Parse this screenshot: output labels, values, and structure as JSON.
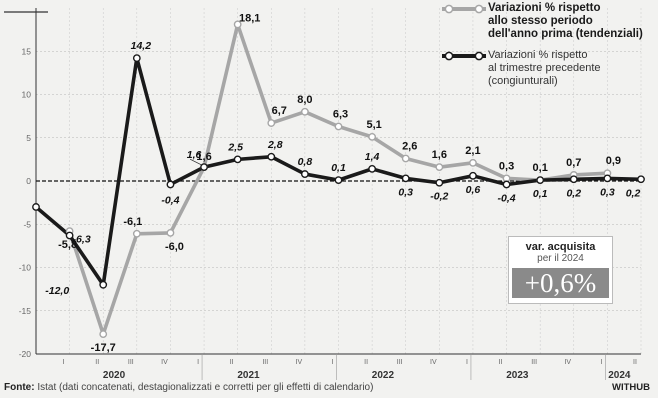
{
  "chart_data": {
    "type": "line",
    "x": [
      "2019-IV",
      "2020-I",
      "2020-II",
      "2020-III",
      "2020-IV",
      "2021-I",
      "2021-II",
      "2021-III",
      "2021-IV",
      "2022-I",
      "2022-II",
      "2022-III",
      "2022-IV",
      "2023-I",
      "2023-II",
      "2023-III",
      "2023-IV",
      "2024-I",
      "2024-II"
    ],
    "quarter_ticks": [
      "I",
      "II",
      "III",
      "IV",
      "I",
      "II",
      "III",
      "IV",
      "I",
      "II",
      "III",
      "IV",
      "I",
      "II",
      "III",
      "IV",
      "I",
      "II"
    ],
    "year_labels": [
      "2020",
      "2021",
      "2022",
      "2023",
      "2024"
    ],
    "ylim": [
      -20,
      20
    ],
    "yticks": [
      -20,
      -15,
      -10,
      -5,
      0,
      5,
      10,
      15
    ],
    "grid": true,
    "series": [
      {
        "name": "Variazioni % rispetto allo stesso periodo dell'anno prima (tendenziali)",
        "color": "#a6a6a6",
        "values": [
          null,
          -5.8,
          -17.7,
          -6.1,
          -6.0,
          1.6,
          18.1,
          6.7,
          8.0,
          6.3,
          5.1,
          2.6,
          1.6,
          2.1,
          0.3,
          0.1,
          0.7,
          0.9,
          null
        ],
        "labels": [
          "",
          "-5,8",
          "-17,7",
          "-6,1",
          "-6,0",
          "1,6",
          "18,1",
          "6,7",
          "8,0",
          "6,3",
          "5,1",
          "2,6",
          "1,6",
          "2,1",
          "0,3",
          "0,1",
          "0,7",
          "0,9",
          ""
        ]
      },
      {
        "name": "Variazioni % rispetto al trimestre precedente (congiunturali)",
        "color": "#1a1a1a",
        "values": [
          -3.0,
          -6.3,
          -12.0,
          14.2,
          -0.4,
          1.6,
          2.5,
          2.8,
          0.8,
          0.1,
          1.4,
          0.3,
          -0.2,
          0.6,
          -0.4,
          0.1,
          0.2,
          0.3,
          0.2
        ],
        "labels": [
          "",
          "-6,3",
          "-12,0",
          "14,2",
          "-0,4",
          "1,6",
          "2,5",
          "2,8",
          "0,8",
          "0,1",
          "1,4",
          "0,3",
          "-0,2",
          "0,6",
          "-0,4",
          "0,1",
          "0,2",
          "0,3",
          "0,2"
        ]
      }
    ]
  },
  "legend": {
    "tendenziali": "Variazioni % rispetto\nallo stesso periodo\ndell'anno prima (tendenziali)",
    "congiunturali": "Variazioni % rispetto\nal trimestre precedente\n(congiunturali)"
  },
  "acquisita": {
    "title": "var. acquisita",
    "subtitle": "per il 2024",
    "value": "+0,6%"
  },
  "footer": {
    "source_label": "Fonte:",
    "source_text": " Istat (dati concatenati, destagionalizzati e corretti per gli effetti di calendario)",
    "brand": "WITHUB"
  }
}
